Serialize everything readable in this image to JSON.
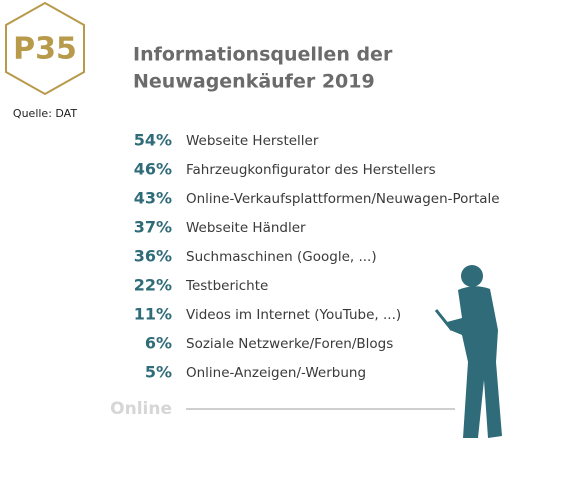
{
  "badge": {
    "label": "P35",
    "source": "Quelle: DAT"
  },
  "header": {
    "title_lines": [
      "Informationsquellen der",
      "Neuwagenkäufer 2019"
    ]
  },
  "items": [
    {
      "value": "54%",
      "label": "Webseite Hersteller"
    },
    {
      "value": "46%",
      "label": "Fahrzeugkonfigurator des Herstellers"
    },
    {
      "value": "43%",
      "label": "Online-Verkaufsplattformen/Neuwagen-Portale"
    },
    {
      "value": "37%",
      "label": "Webseite Händler"
    },
    {
      "value": "36%",
      "label": "Suchmaschinen (Google, ...)"
    },
    {
      "value": "22%",
      "label": "Testberichte"
    },
    {
      "value": "11%",
      "label": "Videos im Internet (YouTube, ...)"
    },
    {
      "value": "6%",
      "label": "Soziale Netzwerke/Foren/Blogs"
    },
    {
      "value": "5%",
      "label": "Online-Anzeigen/-Werbung"
    }
  ],
  "footer": {
    "label": "Online"
  }
}
